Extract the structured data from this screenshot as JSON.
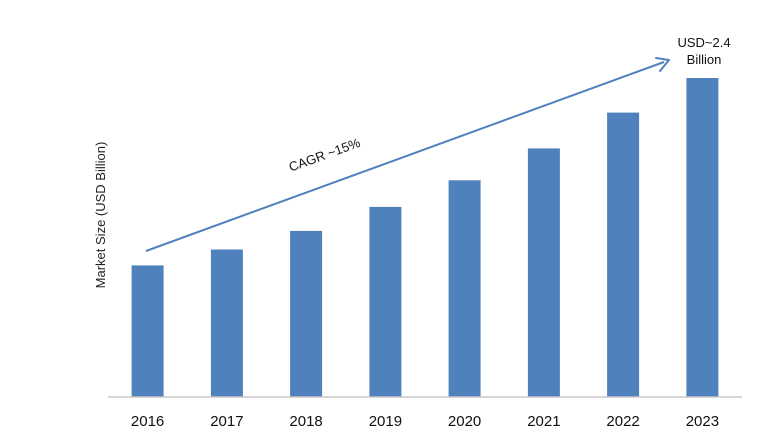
{
  "chart_data": {
    "type": "bar",
    "title": "",
    "xlabel": "",
    "ylabel": "Market Size (USD Billion)",
    "categories": [
      "2016",
      "2017",
      "2018",
      "2019",
      "2020",
      "2021",
      "2022",
      "2023"
    ],
    "values": [
      0.99,
      1.11,
      1.25,
      1.43,
      1.63,
      1.87,
      2.14,
      2.4
    ],
    "ylim": [
      0,
      2.4
    ],
    "grid": false,
    "legend": "none",
    "colors": {
      "bar": "#4f81bd",
      "arrow": "#4f81bd",
      "axis": "#c8c8c8"
    },
    "annotations": {
      "growth": "CAGR ~15%",
      "end_value_line1": "USD~2.4",
      "end_value_line2": "Billion"
    }
  }
}
